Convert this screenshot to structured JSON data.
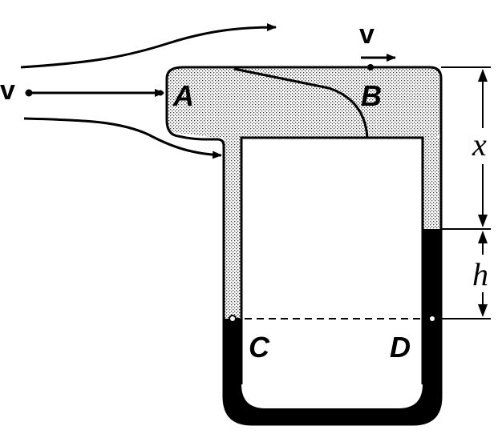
{
  "labels": {
    "velocity_left": "v",
    "velocity_top": "v",
    "point_a": "A",
    "point_b": "B",
    "point_c": "C",
    "point_d": "D",
    "dim_x": "x",
    "dim_h": "h"
  },
  "colors": {
    "ink": "#000000",
    "paper": "#ffffff",
    "stipple_dot": "#3a3a3a"
  }
}
